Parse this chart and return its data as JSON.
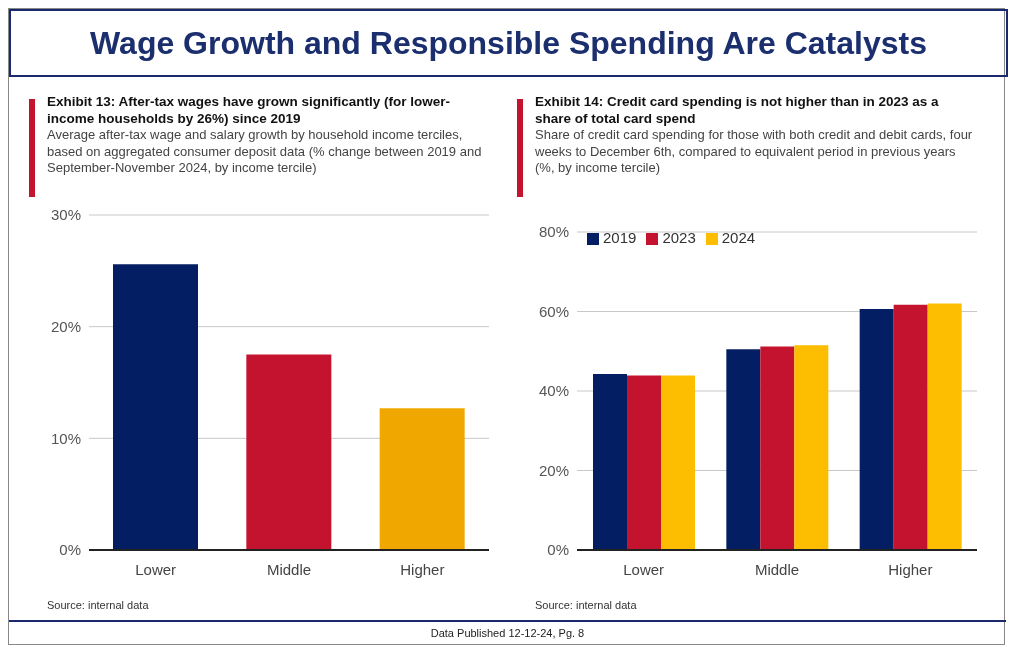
{
  "chart_data": [
    {
      "type": "other",
      "title": "Wage Growth and Responsible Spending Are Catalysts",
      "annotations": [
        "Data Published 12-12-24, Pg. 8"
      ]
    },
    {
      "type": "bar",
      "title": "Exhibit 13: After-tax wages have grown significantly (for lower-income households by 26%) since 2019",
      "subtitle": "Average after-tax wage and salary growth by household income terciles, based on aggregated consumer deposit data (% change between 2019 and September-November 2024, by income tercile)",
      "categories": [
        "Lower",
        "Middle",
        "Higher"
      ],
      "values": [
        25.6,
        17.5,
        12.7
      ],
      "colors": [
        "#031e63",
        "#c3132e",
        "#f0a800"
      ],
      "ylim": [
        0,
        30
      ],
      "yticks": [
        {
          "value": 0,
          "label": "0%"
        },
        {
          "value": 10,
          "label": "10%"
        },
        {
          "value": 20,
          "label": "20%"
        },
        {
          "value": 30,
          "label": "30%"
        }
      ],
      "grid": "y",
      "annotations": [
        "Source: internal data"
      ]
    },
    {
      "type": "bar",
      "title": "Exhibit 14: Credit card spending is not higher than in 2023 as a share of total card spend",
      "subtitle": "Share of credit card spending for those with both credit and debit cards, four weeks to December 6th, compared to equivalent period in previous years (%, by income tercile)",
      "categories": [
        "Lower",
        "Middle",
        "Higher"
      ],
      "series": [
        {
          "name": "2019",
          "color": "#031e63",
          "values": [
            44.3,
            50.5,
            60.6
          ]
        },
        {
          "name": "2023",
          "color": "#c3132e",
          "values": [
            43.9,
            51.2,
            61.7
          ]
        },
        {
          "name": "2024",
          "color": "#fdbd00",
          "values": [
            43.9,
            51.5,
            62.0
          ]
        }
      ],
      "ylim": [
        0,
        80
      ],
      "yticks": [
        {
          "value": 0,
          "label": "0%"
        },
        {
          "value": 20,
          "label": "20%"
        },
        {
          "value": 40,
          "label": "40%"
        },
        {
          "value": 60,
          "label": "60%"
        },
        {
          "value": 80,
          "label": "80%"
        }
      ],
      "grid": "y",
      "legend": "top left",
      "annotations": [
        "Source: internal data"
      ]
    }
  ]
}
